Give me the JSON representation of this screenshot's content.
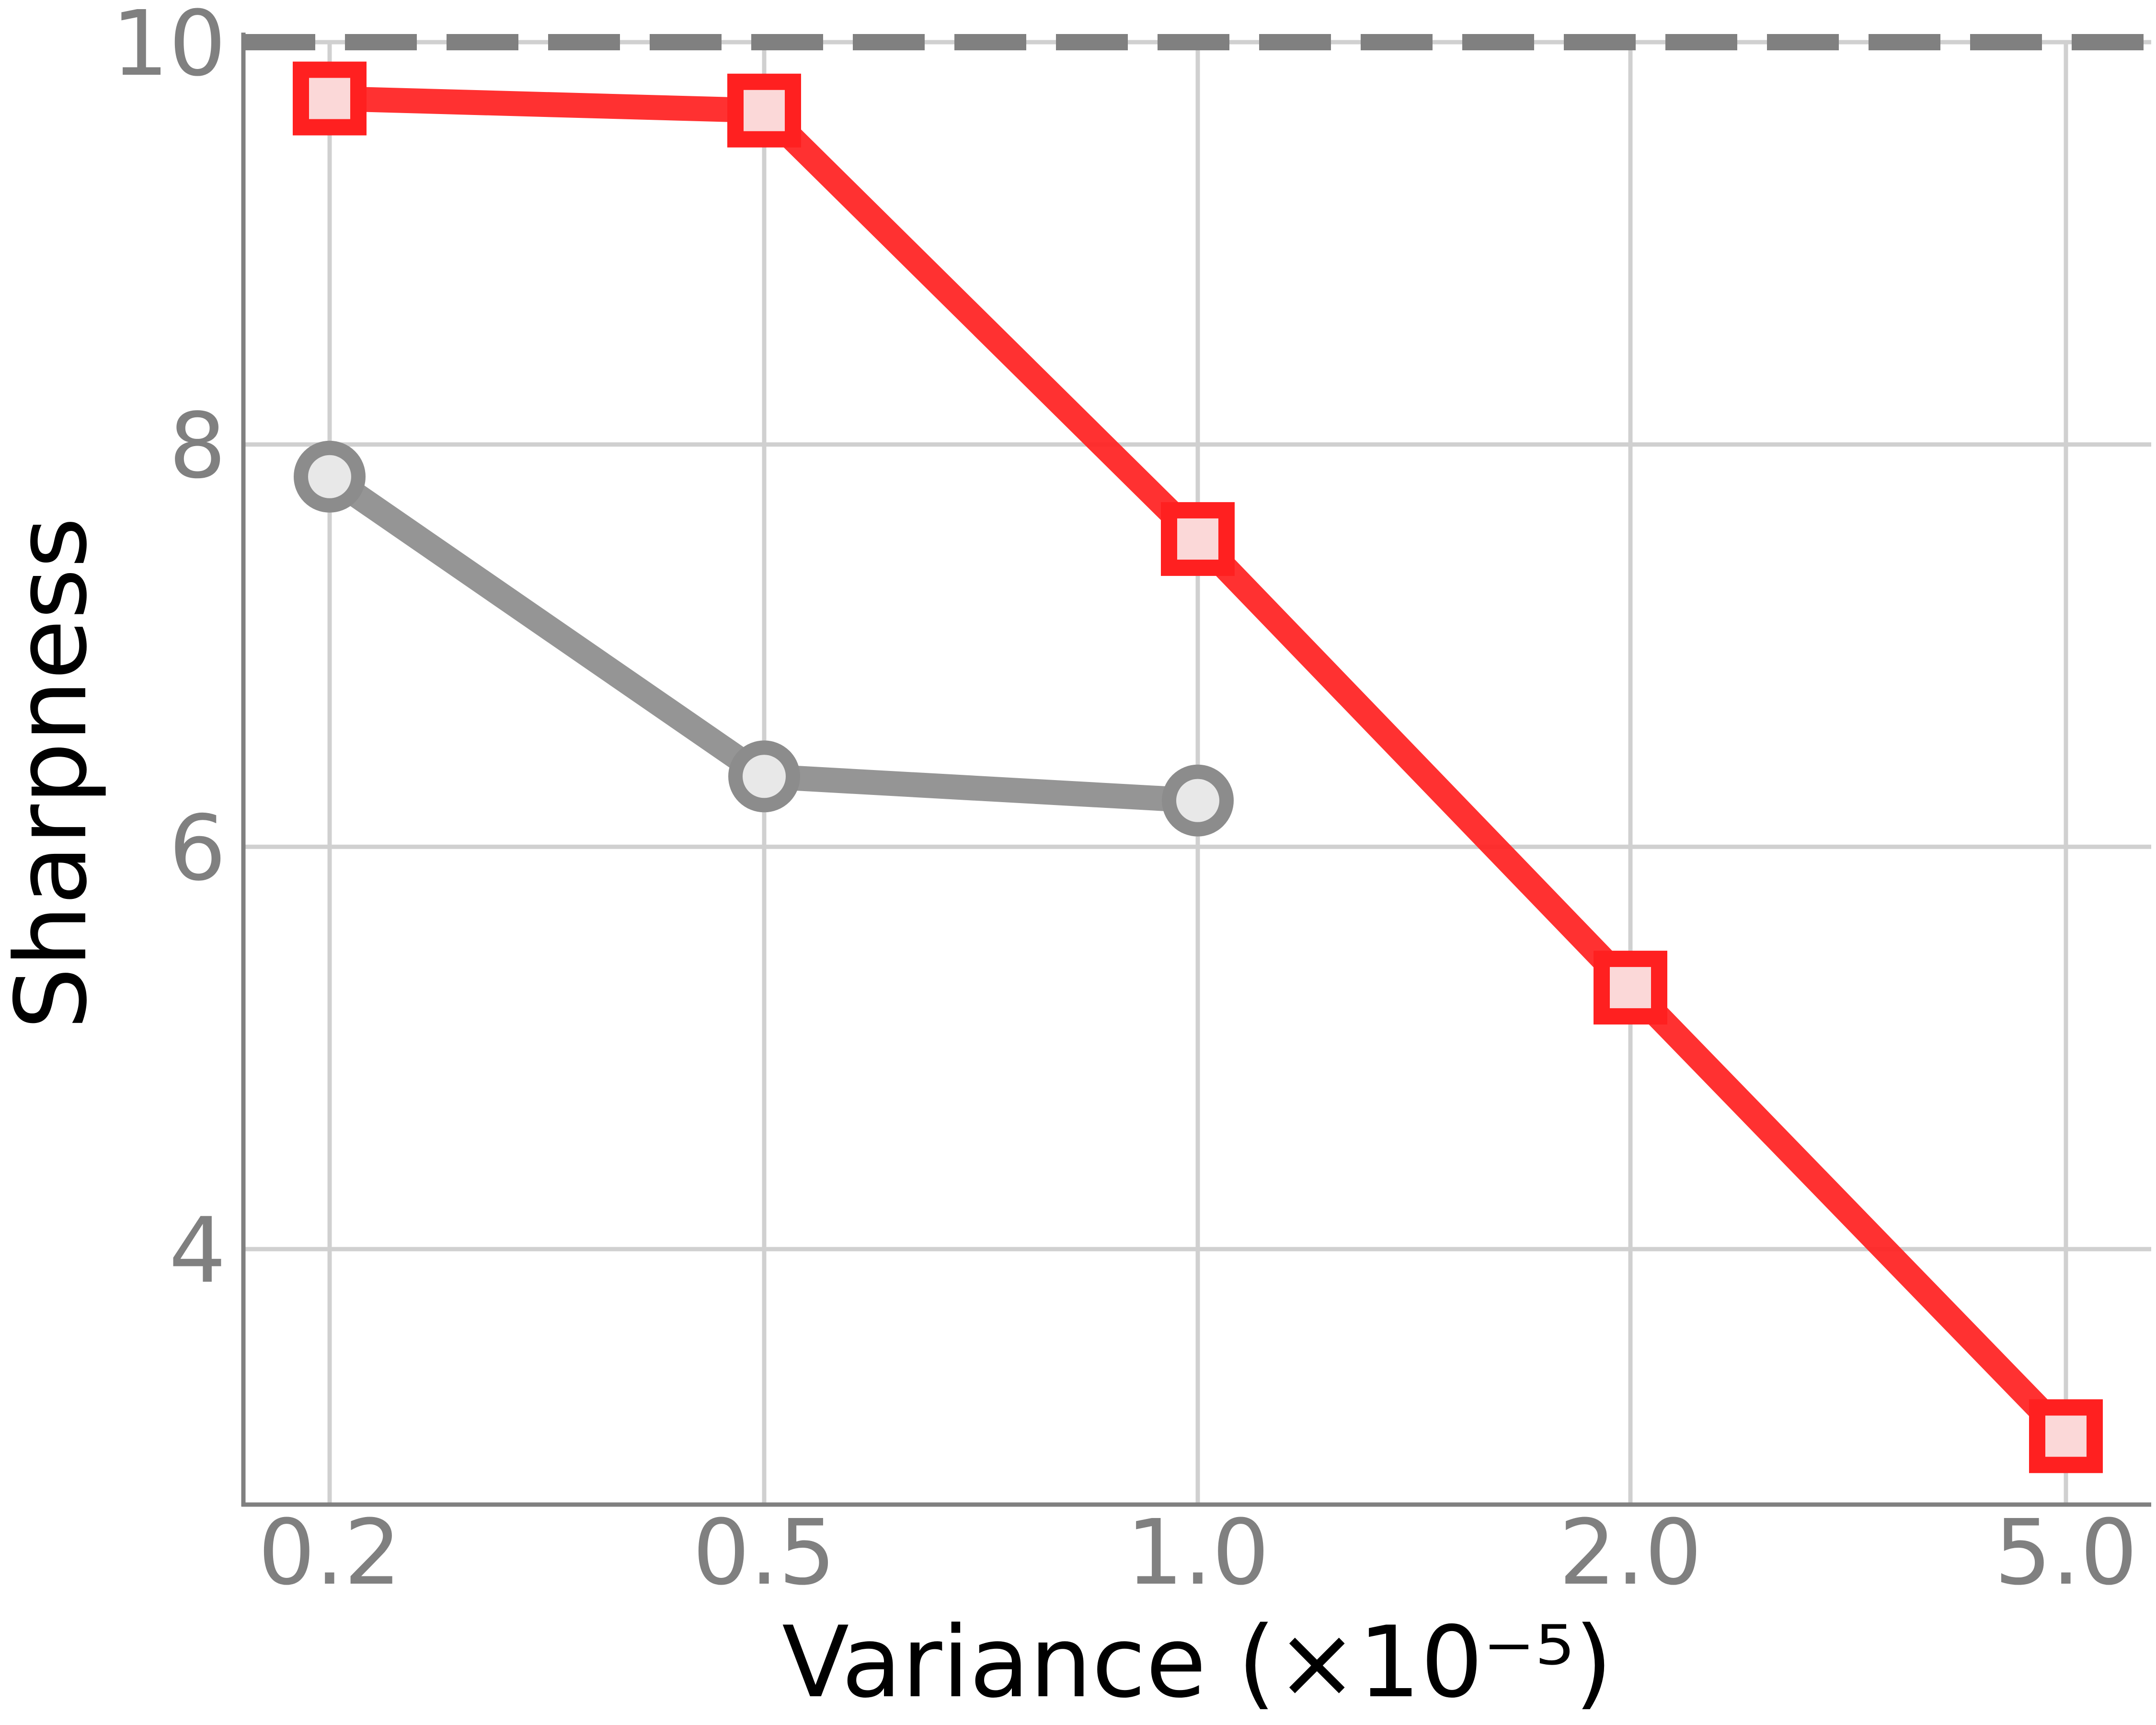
{
  "chart_data": {
    "type": "line",
    "title": "",
    "xlabel": "Variance (×10⁻⁵)",
    "ylabel": "Sharpness",
    "x_scale": "categorical",
    "categories": [
      "0.2",
      "0.5",
      "1.0",
      "2.0",
      "5.0"
    ],
    "yticks": [
      "4",
      "6",
      "8",
      "10"
    ],
    "ylim": [
      2.73,
      10.0
    ],
    "grid": true,
    "legend": "none",
    "reference_line": {
      "y": 10,
      "style": "dashed",
      "color": "#808080"
    },
    "series": [
      {
        "marker": "square",
        "color": "#ff2020",
        "marker_fill": "#fbd8d8",
        "x": [
          "0.2",
          "0.5",
          "1.0",
          "2.0",
          "5.0"
        ],
        "values": [
          9.72,
          9.66,
          7.53,
          5.3,
          3.07
        ]
      },
      {
        "marker": "circle",
        "color": "#8c8c8c",
        "marker_fill": "#e8e8e8",
        "x": [
          "0.2",
          "0.5",
          "1.0"
        ],
        "values": [
          7.84,
          6.35,
          6.23
        ]
      }
    ]
  }
}
